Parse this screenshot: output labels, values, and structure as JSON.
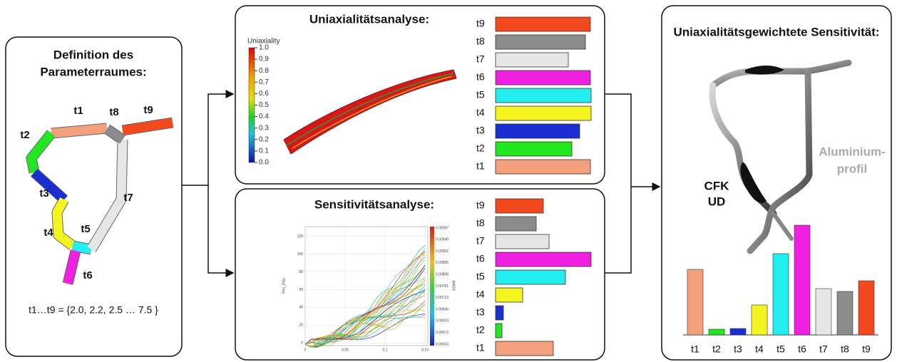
{
  "parameter_space": {
    "title_line1": "Definition des",
    "title_line2": "Parameterraumes:",
    "segments": [
      "t1",
      "t2",
      "t3",
      "t4",
      "t5",
      "t6",
      "t7",
      "t8",
      "t9"
    ],
    "formula": "t1…t9 = {2.0, 2.2, 2.5 … 7.5 }"
  },
  "uniaxiality": {
    "title": "Uniaxialitätsanalyse:",
    "colorbar_label": "Uniaxiality",
    "colorbar_ticks": [
      "1.0",
      "0.9",
      "0.8",
      "0.7",
      "0.6",
      "0.5",
      "0.4",
      "0.3",
      "0.2",
      "0.1",
      "0.0"
    ],
    "bars": {
      "categories": [
        "t9",
        "t8",
        "t7",
        "t6",
        "t5",
        "t4",
        "t3",
        "t2",
        "t1"
      ],
      "values": [
        133,
        126,
        102,
        133,
        134,
        134,
        118,
        107,
        133
      ],
      "colors": [
        "#f24a1e",
        "#8c8c8c",
        "#e6e6e6",
        "#f020e0",
        "#22eef0",
        "#f4f41e",
        "#1a2ed2",
        "#22e622",
        "#f5a07c"
      ]
    }
  },
  "sensitivity": {
    "title": "Sensitivitätsanalyse:",
    "plot_y_label": "Res_Disp",
    "plot_colorbar_label": "MASS",
    "plot_yticks": [
      "0",
      "20",
      "40",
      "60",
      "80",
      "100",
      "120"
    ],
    "plot_xticks": [
      "0",
      "0.05",
      "0.1",
      "0.15"
    ],
    "plot_colorbar_ticks": [
      "0.00997",
      "0.00949",
      "0.00902",
      "0.00855",
      "0.00808",
      "0.00761",
      "0.00713",
      "0.00666",
      "0.00619",
      "0.00572",
      "0.00524"
    ],
    "bars": {
      "categories": [
        "t9",
        "t8",
        "t7",
        "t6",
        "t5",
        "t4",
        "t3",
        "t2",
        "t1"
      ],
      "values": [
        67,
        57,
        75,
        134,
        98,
        38,
        11,
        9,
        81
      ],
      "colors": [
        "#f24a1e",
        "#8c8c8c",
        "#e6e6e6",
        "#f020e0",
        "#22eef0",
        "#f4f41e",
        "#1a2ed2",
        "#22e622",
        "#f5a07c"
      ]
    }
  },
  "weighted": {
    "title": "Uniaxialitätsgewichtete Sensitivität:",
    "label_cfk": "CFK",
    "label_ud": "UD",
    "label_aluminium": "Aluminium-",
    "label_profil": "profil",
    "bars": {
      "categories": [
        "t1",
        "t2",
        "t3",
        "t4",
        "t5",
        "t6",
        "t7",
        "t8",
        "t9"
      ],
      "values": [
        92,
        8,
        9,
        42,
        114,
        154,
        65,
        61,
        76
      ],
      "colors": [
        "#f5a07c",
        "#22e622",
        "#1a2ed2",
        "#f4f41e",
        "#22eef0",
        "#f020e0",
        "#e6e6e6",
        "#8c8c8c",
        "#f24a1e"
      ]
    }
  }
}
